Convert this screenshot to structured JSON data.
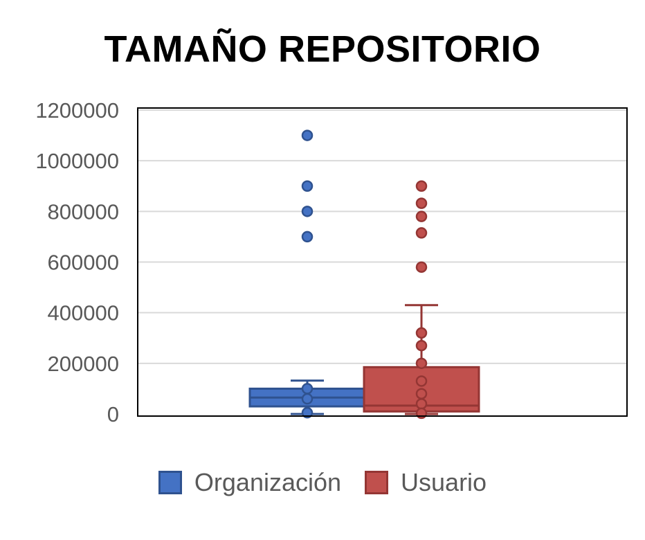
{
  "chart_data": {
    "type": "box",
    "title": "TAMAÑO REPOSITORIO",
    "xlabel": "",
    "ylabel": "",
    "ylim": [
      0,
      1200000
    ],
    "yticks": [
      0,
      200000,
      400000,
      600000,
      800000,
      1000000,
      1200000
    ],
    "grid": true,
    "legend_position": "bottom",
    "series": [
      {
        "name": "Organización",
        "color": "#4472C4",
        "border": "#2F528F",
        "whisker_low": 0,
        "q1": 30000,
        "median": 65000,
        "q3": 100000,
        "whisker_high": 132000,
        "points": [
          1100000,
          900000,
          800000,
          700000,
          100000,
          60000,
          5000
        ]
      },
      {
        "name": "Usuario",
        "color": "#C0504D",
        "border": "#943634",
        "whisker_low": 0,
        "q1": 10000,
        "median": 33000,
        "q3": 185000,
        "whisker_high": 430000,
        "points": [
          900000,
          832000,
          780000,
          715000,
          580000,
          320000,
          270000,
          200000,
          130000,
          80000,
          40000,
          3000
        ]
      }
    ]
  }
}
